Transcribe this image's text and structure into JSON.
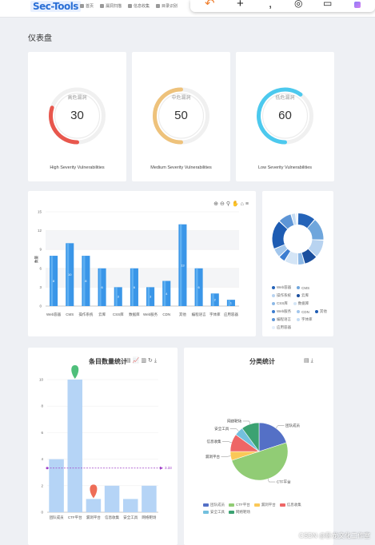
{
  "topbar": {
    "logo": "Sec-Tools",
    "nav": [
      {
        "label": "首页",
        "icon": "home-icon"
      },
      {
        "label": "漏洞扫描",
        "icon": "bug-icon"
      },
      {
        "label": "信息收集",
        "icon": "globe-icon"
      },
      {
        "label": "目录识别",
        "icon": "folder-icon"
      }
    ]
  },
  "page": {
    "title": "仪表盘"
  },
  "gauges": [
    {
      "name": "高危漏洞",
      "value": 30,
      "footer": "High Severity Vulnerabilities",
      "color": "#e8574d"
    },
    {
      "name": "中危漏洞",
      "value": 50,
      "footer": "Medium Severity Vulnerabilities",
      "color": "#eec27b"
    },
    {
      "name": "低危漏洞",
      "value": 60,
      "footer": "Low Severity Vulnerabilities",
      "color": "#4cc9ee"
    }
  ],
  "chart_data": [
    {
      "type": "bar",
      "categories": [
        "Web容器",
        "CMS",
        "操作系统",
        "云库",
        "CSS库",
        "数据库",
        "Web服务",
        "CDN",
        "其他",
        "编程语言",
        "字体库",
        "应用容器"
      ],
      "values": [
        8,
        10,
        8,
        6,
        3,
        6,
        3,
        4,
        13,
        6,
        2,
        1
      ],
      "ylim": [
        0,
        15
      ],
      "yticks": [
        0,
        3,
        6,
        9,
        12,
        15
      ],
      "ylabel": "数量",
      "color": "#3a96e8"
    },
    {
      "type": "pie",
      "variant": "donut",
      "labels": [
        "Web容器",
        "CMS",
        "操作系统",
        "云库",
        "CSS库",
        "数据库",
        "Web服务",
        "CDN",
        "其他",
        "编程语言",
        "字体库",
        "应用容器"
      ],
      "values": [
        8,
        10,
        8,
        6,
        3,
        6,
        3,
        4,
        13,
        6,
        2,
        1
      ],
      "colors": [
        "#2463b8",
        "#6fa6dc",
        "#b8d3f0",
        "#1b4f9e",
        "#8cb8e6",
        "#d4e5f6",
        "#3c7dd0",
        "#a2c6ec",
        "#1e5cb3",
        "#5d95d6",
        "#c5dcf3",
        "#e3eefa"
      ]
    },
    {
      "type": "bar",
      "title": "条目数量统计",
      "categories": [
        "团队成员",
        "CTF平台",
        "漏洞平台",
        "信息收集",
        "安全工具",
        "网络靶场"
      ],
      "values": [
        4,
        10,
        1,
        2,
        1,
        2
      ],
      "ylim": [
        0,
        10
      ],
      "yticks": [
        0,
        2,
        4,
        6,
        8,
        10
      ],
      "average": 3.33,
      "average_label": "3.33",
      "markers": [
        {
          "category": "CTF平台",
          "color": "#4fbf7b"
        },
        {
          "category": "漏洞平台",
          "color": "#ee6d57"
        }
      ],
      "color": "#b5d4f6"
    },
    {
      "type": "pie",
      "title": "分类统计",
      "labels": [
        "团队成员",
        "CTF平台",
        "漏洞平台",
        "信息收集",
        "安全工具",
        "网络靶场"
      ],
      "values": [
        4,
        10,
        1,
        2,
        1,
        2
      ],
      "colors": [
        "#5470c6",
        "#91cc75",
        "#fac858",
        "#ee6666",
        "#73c0de",
        "#3ba272"
      ]
    }
  ],
  "watermark": "CSDN @卧龙文化工作室"
}
